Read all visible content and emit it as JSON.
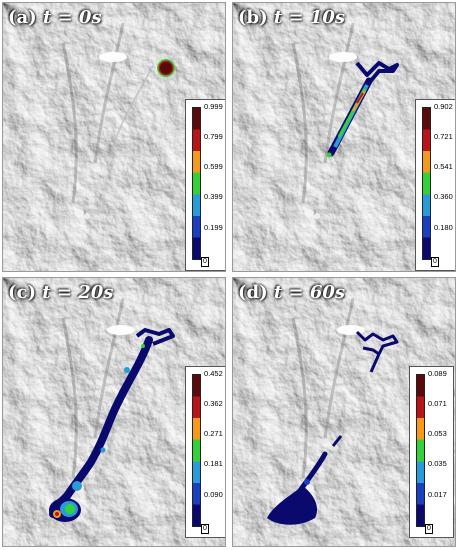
{
  "panels": [
    {
      "id": "a",
      "prefix": "(a)",
      "time_expr": "t = 0s",
      "colorbar": {
        "ticks": [
          "0.999",
          "0.799",
          "0.599",
          "0.399",
          "0.199"
        ],
        "zero": "0"
      }
    },
    {
      "id": "b",
      "prefix": "(b)",
      "time_expr": "t = 10s",
      "colorbar": {
        "ticks": [
          "0.902",
          "0.721",
          "0.541",
          "0.360",
          "0.180"
        ],
        "zero": "0"
      }
    },
    {
      "id": "c",
      "prefix": "(c)",
      "time_expr": "t = 20s",
      "colorbar": {
        "ticks": [
          "0.452",
          "0.362",
          "0.271",
          "0.181",
          "0.090"
        ],
        "zero": "0"
      }
    },
    {
      "id": "d",
      "prefix": "(d)",
      "time_expr": "t = 60s",
      "colorbar": {
        "ticks": [
          "0.089",
          "0.071",
          "0.053",
          "0.035",
          "0.017"
        ],
        "zero": "0"
      }
    }
  ],
  "colormap": [
    "#0a0a6e",
    "#1a3fbf",
    "#2a9ad8",
    "#36d13a",
    "#f39a1a",
    "#b8141a",
    "#5a0a0a"
  ]
}
